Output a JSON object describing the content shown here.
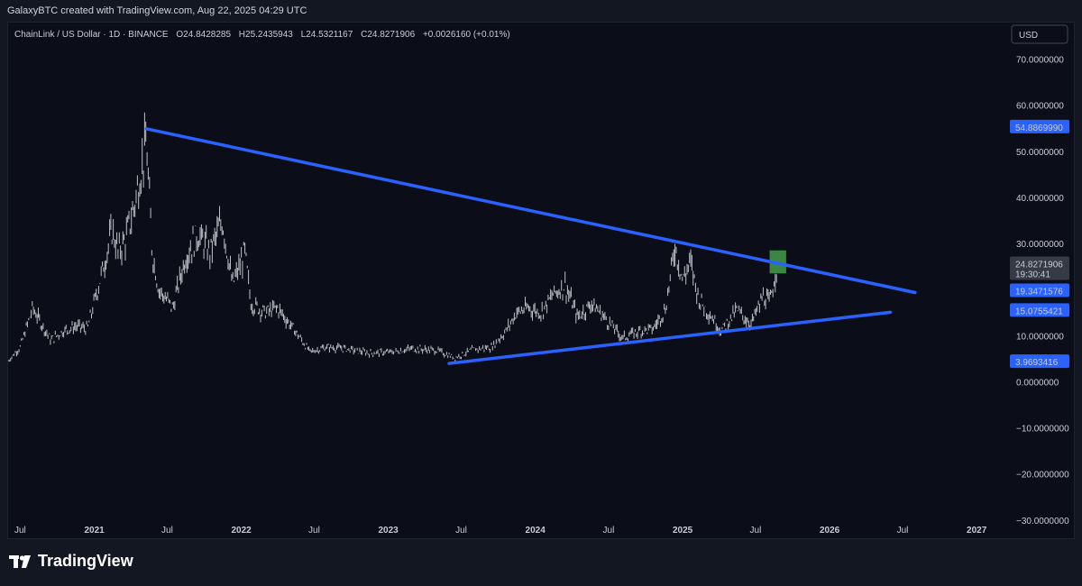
{
  "header": {
    "text": "GalaxyBTC created with TradingView.com, Aug 22, 2025 04:29 UTC"
  },
  "symbol": {
    "name": "ChainLink / US Dollar · 1D · BINANCE",
    "open_label": "O",
    "open": "24.8428285",
    "high_label": "H",
    "high": "25.2435943",
    "low_label": "L",
    "low": "24.5321167",
    "close_label": "C",
    "close": "24.8271906",
    "change": "+0.0026160 (+0.01%)"
  },
  "currency_button": "USD",
  "price_tags": {
    "top_line": "54.8869990",
    "last_price": "24.8271906",
    "countdown": "19:30:41",
    "upper_line_end": "19.3471576",
    "lower_line_end": "15.0755421",
    "lower_line_start": "3.9693416"
  },
  "brand": {
    "name": "TradingView"
  },
  "colors": {
    "background": "#0b0e18",
    "candles": "#d1d4dc",
    "trendline": "#2962ff",
    "highlight": "#4caf50",
    "tag_blue": "#2962ff",
    "tag_grey": "#363a45"
  },
  "chart_data": {
    "type": "line",
    "ylim": [
      -32,
      75
    ],
    "grid": false,
    "y_ticks": [
      {
        "value": 70,
        "label": "70.0000000"
      },
      {
        "value": 60,
        "label": "60.0000000"
      },
      {
        "value": 50,
        "label": "50.0000000"
      },
      {
        "value": 40,
        "label": "40.0000000"
      },
      {
        "value": 30,
        "label": "30.0000000"
      },
      {
        "value": 10,
        "label": "10.0000000"
      },
      {
        "value": 0,
        "label": "0.0000000"
      },
      {
        "value": -10,
        "label": "−10.0000000"
      },
      {
        "value": -20,
        "label": "−20.0000000"
      },
      {
        "value": -30,
        "label": "−30.0000000"
      }
    ],
    "x_ticks": [
      {
        "date": "2020-07-01",
        "label": "Jul",
        "year": false
      },
      {
        "date": "2021-01-01",
        "label": "2021",
        "year": true
      },
      {
        "date": "2021-07-01",
        "label": "Jul",
        "year": false
      },
      {
        "date": "2022-01-01",
        "label": "2022",
        "year": true
      },
      {
        "date": "2022-07-01",
        "label": "Jul",
        "year": false
      },
      {
        "date": "2023-01-01",
        "label": "2023",
        "year": true
      },
      {
        "date": "2023-07-01",
        "label": "Jul",
        "year": false
      },
      {
        "date": "2024-01-01",
        "label": "2024",
        "year": true
      },
      {
        "date": "2024-07-01",
        "label": "Jul",
        "year": false
      },
      {
        "date": "2025-01-01",
        "label": "2025",
        "year": true
      },
      {
        "date": "2025-07-01",
        "label": "Jul",
        "year": false
      },
      {
        "date": "2026-01-01",
        "label": "2026",
        "year": true
      },
      {
        "date": "2026-07-01",
        "label": "Jul",
        "year": false
      },
      {
        "date": "2027-01-01",
        "label": "2027",
        "year": true
      }
    ],
    "price_path": [
      {
        "x": "2020-06-01",
        "y": 4.5
      },
      {
        "x": "2020-07-01",
        "y": 7.5
      },
      {
        "x": "2020-08-01",
        "y": 16
      },
      {
        "x": "2020-08-20",
        "y": 13
      },
      {
        "x": "2020-09-15",
        "y": 9
      },
      {
        "x": "2020-10-15",
        "y": 11
      },
      {
        "x": "2020-11-15",
        "y": 12
      },
      {
        "x": "2020-12-15",
        "y": 11.5
      },
      {
        "x": "2021-01-15",
        "y": 22
      },
      {
        "x": "2021-02-15",
        "y": 33
      },
      {
        "x": "2021-03-01",
        "y": 28
      },
      {
        "x": "2021-03-20",
        "y": 31
      },
      {
        "x": "2021-04-10",
        "y": 38
      },
      {
        "x": "2021-05-10",
        "y": 52
      },
      {
        "x": "2021-05-25",
        "y": 28
      },
      {
        "x": "2021-06-10",
        "y": 20
      },
      {
        "x": "2021-07-15",
        "y": 16
      },
      {
        "x": "2021-08-15",
        "y": 27
      },
      {
        "x": "2021-09-15",
        "y": 32
      },
      {
        "x": "2021-10-15",
        "y": 28
      },
      {
        "x": "2021-11-15",
        "y": 35
      },
      {
        "x": "2021-12-10",
        "y": 21
      },
      {
        "x": "2022-01-10",
        "y": 28
      },
      {
        "x": "2022-01-25",
        "y": 17
      },
      {
        "x": "2022-03-01",
        "y": 15
      },
      {
        "x": "2022-04-01",
        "y": 16
      },
      {
        "x": "2022-05-15",
        "y": 11
      },
      {
        "x": "2022-06-20",
        "y": 6.5
      },
      {
        "x": "2022-08-01",
        "y": 7.5
      },
      {
        "x": "2022-09-15",
        "y": 7.2
      },
      {
        "x": "2022-11-15",
        "y": 6.2
      },
      {
        "x": "2023-01-15",
        "y": 6.5
      },
      {
        "x": "2023-03-01",
        "y": 7.2
      },
      {
        "x": "2023-05-01",
        "y": 6.8
      },
      {
        "x": "2023-06-15",
        "y": 5.2
      },
      {
        "x": "2023-08-01",
        "y": 7.0
      },
      {
        "x": "2023-09-15",
        "y": 7.5
      },
      {
        "x": "2023-10-20",
        "y": 11
      },
      {
        "x": "2023-11-15",
        "y": 15
      },
      {
        "x": "2023-12-15",
        "y": 16
      },
      {
        "x": "2024-01-15",
        "y": 15
      },
      {
        "x": "2024-02-15",
        "y": 19
      },
      {
        "x": "2024-03-15",
        "y": 21
      },
      {
        "x": "2024-04-15",
        "y": 14
      },
      {
        "x": "2024-05-20",
        "y": 17
      },
      {
        "x": "2024-06-20",
        "y": 14
      },
      {
        "x": "2024-08-05",
        "y": 9.5
      },
      {
        "x": "2024-09-15",
        "y": 11
      },
      {
        "x": "2024-10-20",
        "y": 11.5
      },
      {
        "x": "2024-11-20",
        "y": 16
      },
      {
        "x": "2024-12-13",
        "y": 29.5
      },
      {
        "x": "2025-01-01",
        "y": 22
      },
      {
        "x": "2025-01-20",
        "y": 26
      },
      {
        "x": "2025-02-10",
        "y": 18
      },
      {
        "x": "2025-03-15",
        "y": 14
      },
      {
        "x": "2025-04-07",
        "y": 11
      },
      {
        "x": "2025-05-15",
        "y": 15.5
      },
      {
        "x": "2025-06-20",
        "y": 12.5
      },
      {
        "x": "2025-07-20",
        "y": 18.5
      },
      {
        "x": "2025-08-05",
        "y": 17
      },
      {
        "x": "2025-08-22",
        "y": 24.8
      }
    ],
    "trendlines": [
      {
        "name": "upper",
        "from": {
          "x": "2021-05-10",
          "y": 54.886999
        },
        "to": {
          "x": "2026-08-01",
          "y": 19.3471576
        }
      },
      {
        "name": "lower",
        "from": {
          "x": "2023-06-01",
          "y": 3.9693416
        },
        "to": {
          "x": "2026-06-01",
          "y": 15.0755421
        }
      }
    ],
    "highlight_box": {
      "x0": "2025-08-05",
      "x1": "2025-09-15",
      "y0": 23.5,
      "y1": 28.5
    }
  }
}
